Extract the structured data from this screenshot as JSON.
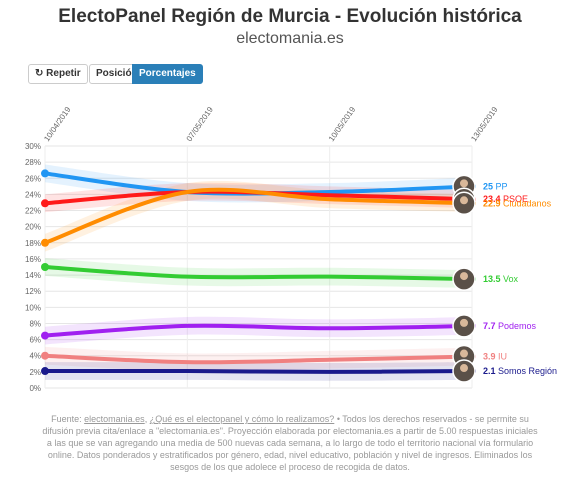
{
  "header": {
    "title": "ElectoPanel Región de Murcia - Evolución histórica",
    "subtitle": "electomania.es"
  },
  "controls": {
    "repeat_label": "Repetir",
    "position_label": "Posición",
    "percent_label": "Porcentajes"
  },
  "footer": {
    "prefix": "Fuente:",
    "link1": "electomania.es",
    "link2": "¿Qué es el electopanel y cómo lo realizamos?",
    "body": "• Todos los derechos reservados - se permite su difusión previa cita/enlace a \"electomania.es\". Proyección elaborada por electomania.es a partir de 5.00 respuestas iniciales a las que se van agregando una media de 500 nuevas cada semana, a lo largo de todo el territorio nacional vía formulario online. Datos ponderados y estratificados por género, edad, nivel educativo, población y nivel de ingresos. Eliminados los sesgos de los que adolece el proceso de recogida de datos."
  },
  "chart_data": {
    "type": "line",
    "x_tick_labels": [
      "10/04/2019",
      "07/05/2019",
      "10/05/2019",
      "13/05/2019"
    ],
    "x_positions": [
      0,
      1,
      2,
      3
    ],
    "ylim": [
      0,
      30
    ],
    "y_ticks": [
      0,
      2,
      4,
      6,
      8,
      10,
      12,
      14,
      16,
      18,
      20,
      22,
      24,
      26,
      28,
      30
    ],
    "y_tick_suffix": "%",
    "grid": true,
    "series": [
      {
        "name": "PP",
        "color": "#2196f3",
        "values": [
          26.6,
          24.3,
          24.3,
          25
        ],
        "end_label": "25",
        "icon": "pp-candidate-avatar"
      },
      {
        "name": "PSOE",
        "color": "#ff1a1a",
        "values": [
          22.9,
          24.3,
          23.9,
          23.4
        ],
        "end_label": "23.4",
        "icon": "psoe-candidate-avatar"
      },
      {
        "name": "Ciudadanos",
        "color": "#ff8c00",
        "values": [
          18,
          24.3,
          23.4,
          22.9
        ],
        "end_label": "22.9",
        "icon": "ciudadanos-candidate-avatar"
      },
      {
        "name": "Vox",
        "color": "#33cc33",
        "values": [
          15,
          13.8,
          13.8,
          13.5
        ],
        "end_label": "13.5",
        "icon": "vox-candidate-avatar"
      },
      {
        "name": "Podemos",
        "color": "#a020f0",
        "values": [
          6.5,
          7.7,
          7.4,
          7.7
        ],
        "end_label": "7.7",
        "icon": "podemos-candidate-avatar"
      },
      {
        "name": "IU",
        "color": "#f08080",
        "values": [
          4,
          3.2,
          3.5,
          3.9
        ],
        "end_label": "3.9",
        "icon": "iu-candidate-avatar"
      },
      {
        "name": "Somos Región",
        "color": "#1a1a8c",
        "values": [
          2.1,
          2.1,
          2.0,
          2.1
        ],
        "end_label": "2.1",
        "icon": "somos-region-candidate-avatar"
      }
    ]
  }
}
